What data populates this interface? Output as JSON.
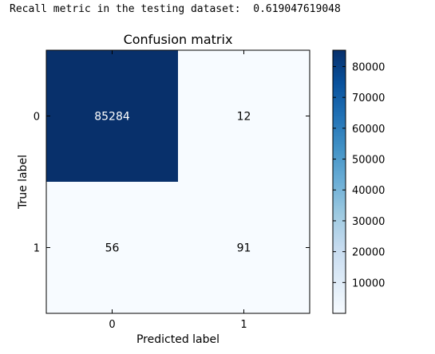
{
  "output_text": "Recall metric in the testing dataset:  0.619047619048",
  "chart_data": {
    "type": "heatmap",
    "title": "Confusion matrix",
    "xlabel": "Predicted label",
    "ylabel": "True label",
    "x_categories": [
      "0",
      "1"
    ],
    "y_categories": [
      "0",
      "1"
    ],
    "values": [
      [
        85284,
        12
      ],
      [
        56,
        91
      ]
    ],
    "colormap": "Blues",
    "colorbar": {
      "ticks": [
        10000,
        20000,
        30000,
        40000,
        50000,
        60000,
        70000,
        80000
      ],
      "tick_labels": [
        "10000",
        "20000",
        "30000",
        "40000",
        "50000",
        "60000",
        "70000",
        "80000"
      ],
      "range": [
        12,
        85284
      ]
    },
    "colors": {
      "low": "#f7fbff",
      "high": "#08306b"
    }
  }
}
